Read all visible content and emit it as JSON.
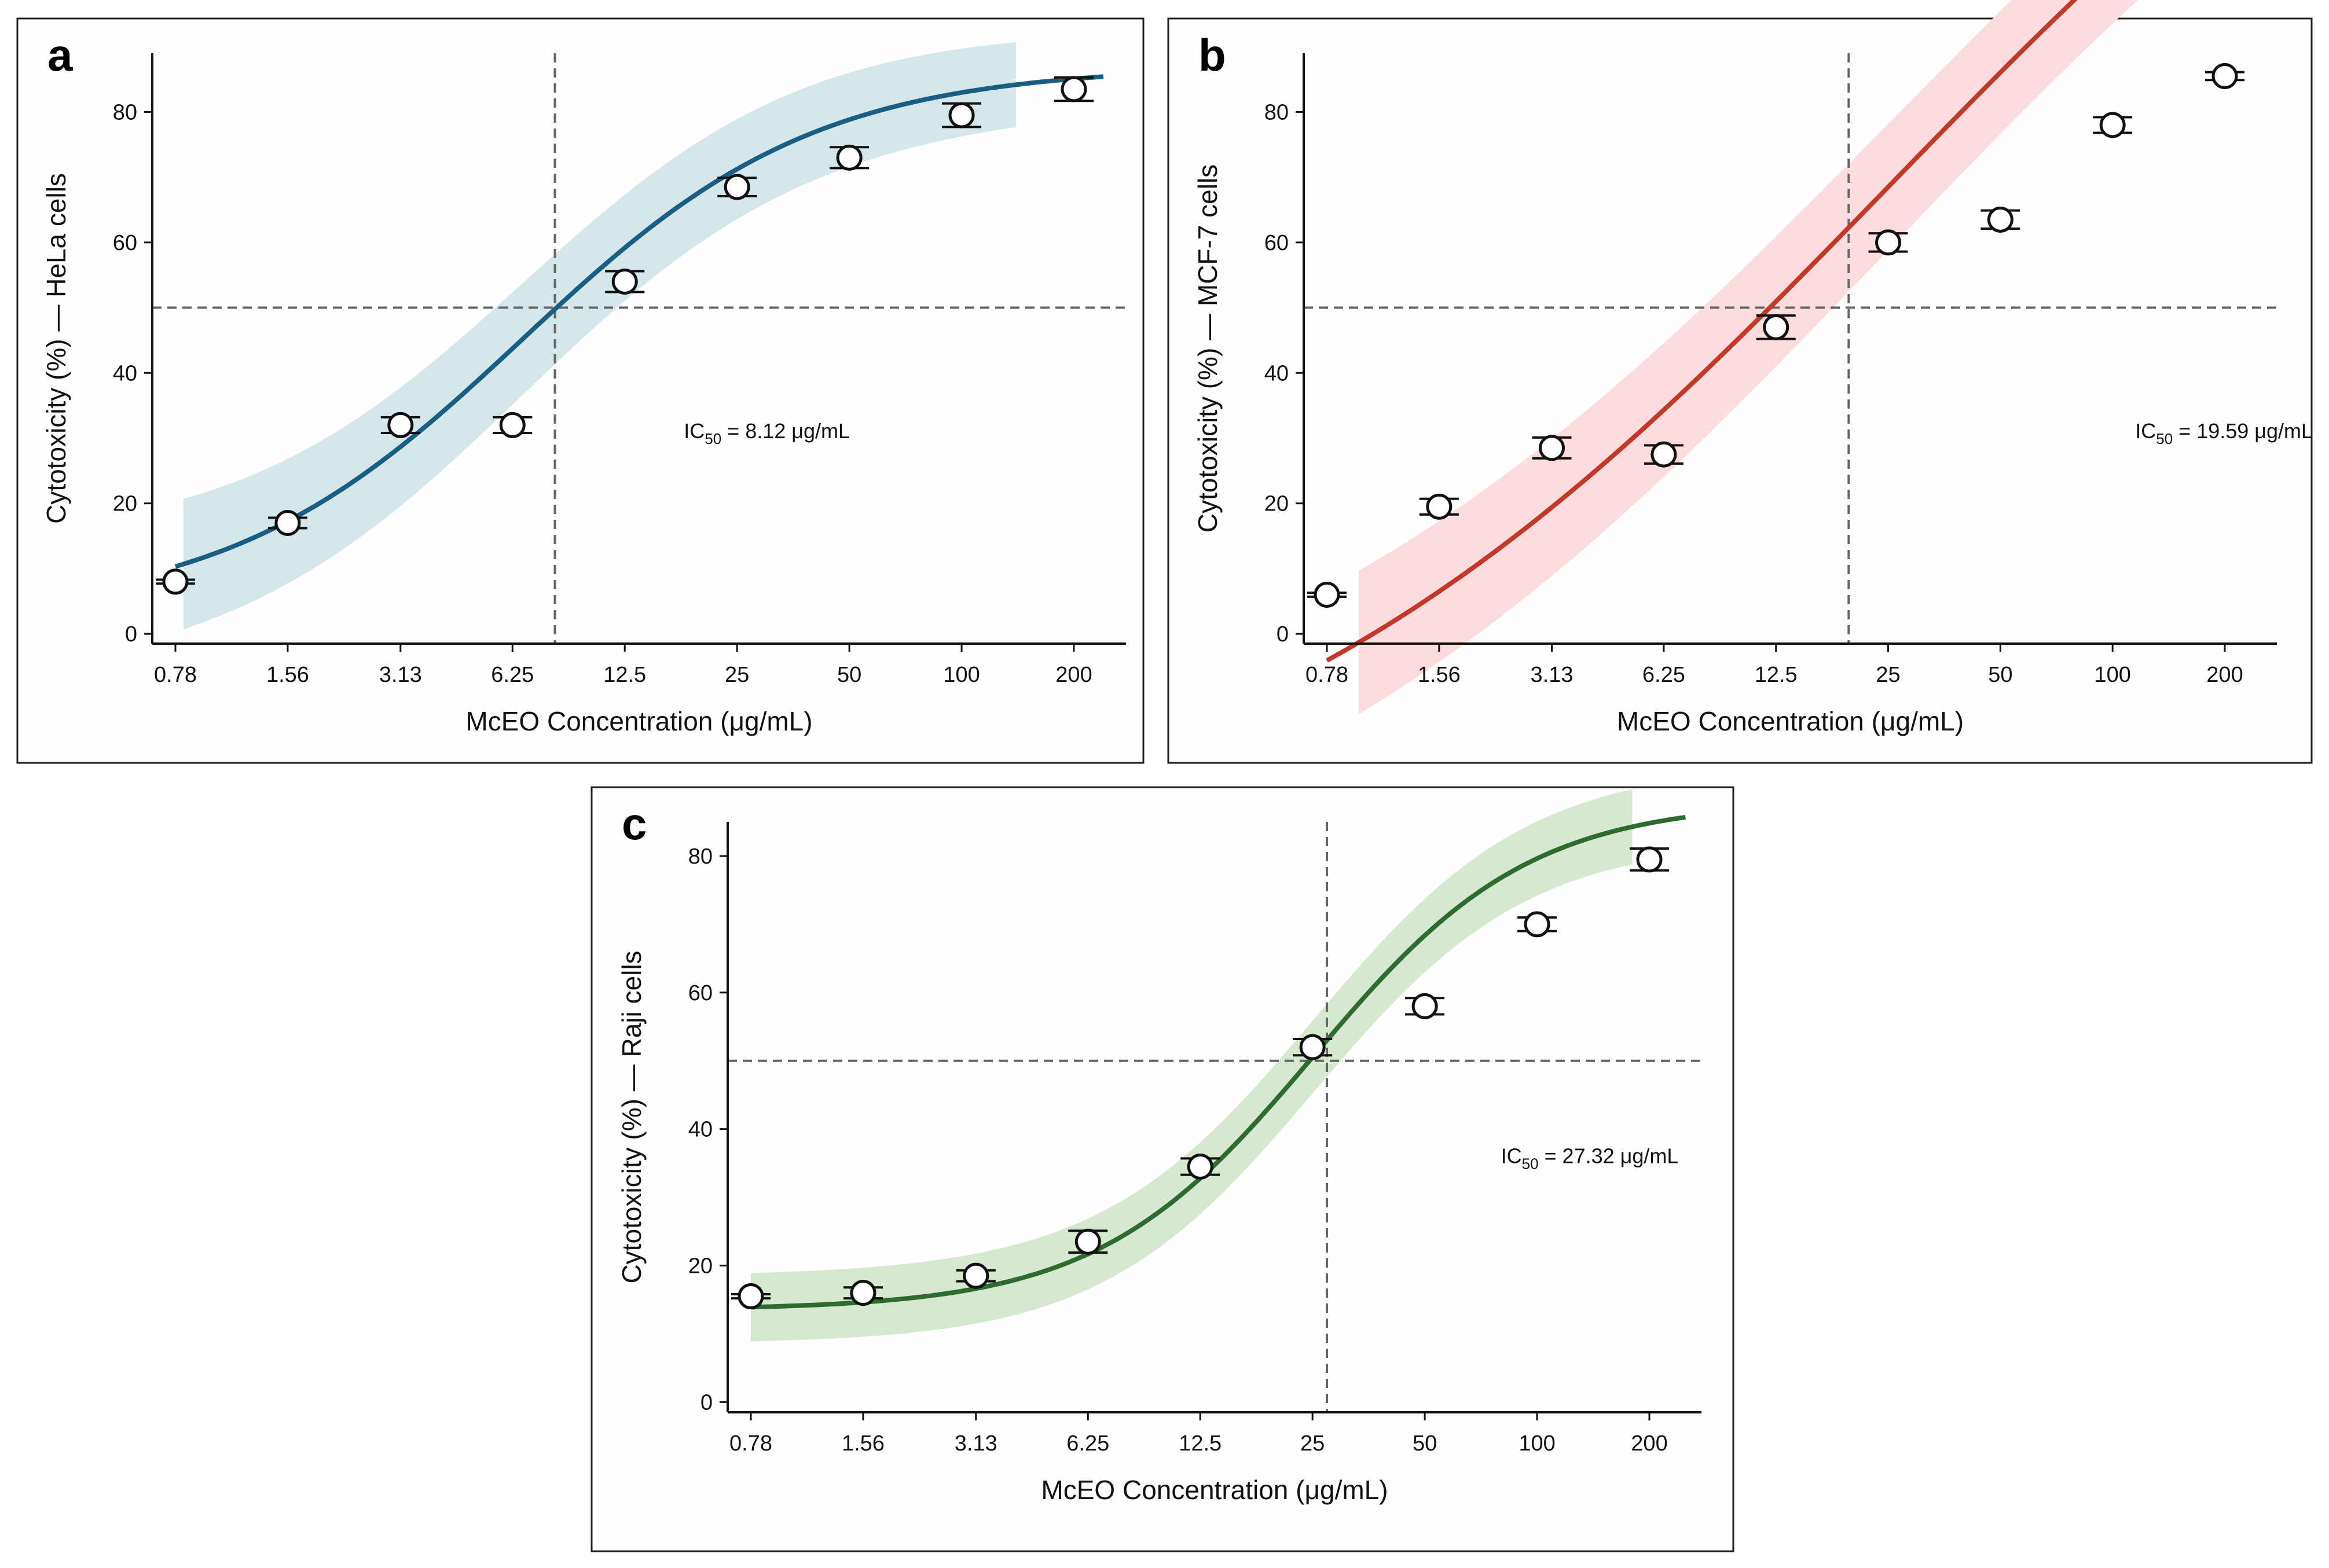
{
  "chart_data": [
    {
      "type": "line",
      "panel": "a",
      "ylabel": "Cytotoxicity (%) — HeLa cells",
      "xlabel": "McEO Concentration (μg/mL)",
      "categories": [
        "0.78",
        "1.56",
        "3.13",
        "6.25",
        "12.5",
        "25",
        "50",
        "100",
        "200"
      ],
      "x": [
        0.78,
        1.56,
        3.13,
        6.25,
        12.5,
        25,
        50,
        100,
        200
      ],
      "values": [
        8,
        17,
        32,
        32,
        54,
        68.5,
        73,
        79.5,
        83.5
      ],
      "error": [
        0.3,
        0.8,
        1.2,
        1.2,
        1.6,
        1.4,
        1.6,
        1.8,
        1.8
      ],
      "yticks": [
        0,
        20,
        40,
        60,
        80
      ],
      "ylim": [
        -1.5,
        89
      ],
      "ic50": 8.12,
      "ic50_label": {
        "prefix": "IC",
        "sub": "50",
        "text": " = 8.12 μg/mL"
      },
      "hline": 50,
      "fit": {
        "bottom": 3,
        "top": 87,
        "ec50": 6.6,
        "hill": 1.1
      },
      "band_halfwidth": [
        10,
        6.5
      ],
      "band_x": [
        0.82,
        140
      ],
      "curve_x": [
        0.78,
        240
      ],
      "ic50_label_x": 18,
      "ic50_label_y": 30,
      "color": "#1b5e83",
      "band_color": "#d6e7ec"
    },
    {
      "type": "line",
      "panel": "b",
      "ylabel": "Cytotoxicity (%) — MCF-7 cells",
      "xlabel": "McEO Concentration (μg/mL)",
      "categories": [
        "0.78",
        "1.56",
        "3.13",
        "6.25",
        "12.5",
        "25",
        "50",
        "100",
        "200"
      ],
      "x": [
        0.78,
        1.56,
        3.13,
        6.25,
        12.5,
        25,
        50,
        100,
        200
      ],
      "values": [
        6,
        19.5,
        28.5,
        27.5,
        47,
        60,
        63.5,
        78,
        85.5
      ],
      "error": [
        0.3,
        1.2,
        1.6,
        1.4,
        1.8,
        1.4,
        1.4,
        1.2,
        0.6
      ],
      "yticks": [
        0,
        20,
        40,
        60,
        80
      ],
      "ylim": [
        -1.5,
        89
      ],
      "ic50": 19.59,
      "ic50_label": {
        "prefix": "IC",
        "sub": "50",
        "text": " = 19.59 μg/mL"
      },
      "hline": 50,
      "fit": {
        "bottom": -38,
        "top": 175,
        "ec50": 25,
        "hill": 0.48
      },
      "band_halfwidth": [
        11,
        9
      ],
      "band_x": [
        0.95,
        140
      ],
      "curve_x": [
        0.78,
        250
      ],
      "ic50_label_x": 115,
      "ic50_label_y": 30,
      "color": "#c0392b",
      "band_color": "#fcdcdc"
    },
    {
      "type": "line",
      "panel": "c",
      "ylabel": "Cytotoxicity (%) — Raji cells",
      "xlabel": "McEO Concentration (μg/mL)",
      "categories": [
        "0.78",
        "1.56",
        "3.13",
        "6.25",
        "12.5",
        "25",
        "50",
        "100",
        "200"
      ],
      "x": [
        0.78,
        1.56,
        3.13,
        6.25,
        12.5,
        25,
        50,
        100,
        200
      ],
      "values": [
        15.5,
        16,
        18.5,
        23.5,
        34.5,
        52,
        58,
        70,
        79.5
      ],
      "error": [
        0.3,
        0.8,
        0.8,
        1.6,
        1.2,
        1.2,
        1.2,
        1.0,
        1.6
      ],
      "yticks": [
        0,
        20,
        40,
        60,
        80
      ],
      "ylim": [
        -1.5,
        85
      ],
      "ic50": 27.32,
      "ic50_label": {
        "prefix": "IC",
        "sub": "50",
        "text": " = 27.32 μg/mL"
      },
      "hline": 50,
      "fit": {
        "bottom": 13.5,
        "top": 88,
        "ec50": 25.2,
        "hill": 1.5
      },
      "band_halfwidth": [
        5,
        5.5
      ],
      "band_x": [
        0.78,
        180
      ],
      "curve_x": [
        0.78,
        250
      ],
      "ic50_label_x": 80,
      "ic50_label_y": 35,
      "color": "#2e6b2e",
      "band_color": "#d6e8cf"
    }
  ]
}
